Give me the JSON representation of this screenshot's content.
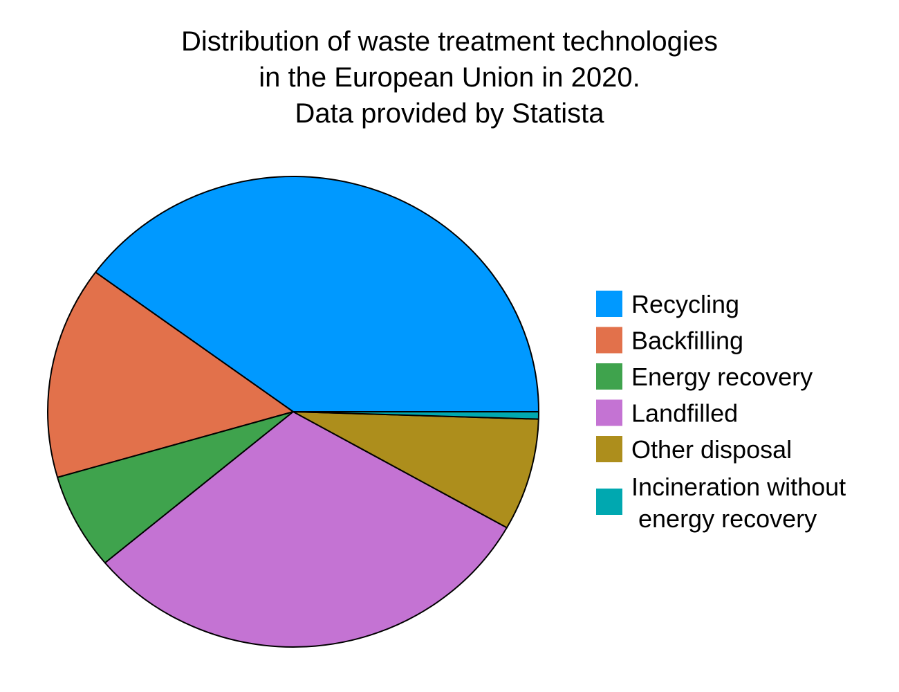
{
  "chart_data": {
    "type": "pie",
    "title_lines": [
      "Distribution of waste treatment technologies",
      "in the European Union in 2020.",
      "Data provided by Statista"
    ],
    "slices": [
      {
        "label_lines": [
          "Recycling"
        ],
        "value": 39.9,
        "color": "#0099ff"
      },
      {
        "label_lines": [
          "Backfilling"
        ],
        "value": 14.6,
        "color": "#e2714b"
      },
      {
        "label_lines": [
          "Energy recovery"
        ],
        "value": 6.6,
        "color": "#3fa34d"
      },
      {
        "label_lines": [
          "Landfilled"
        ],
        "value": 30.7,
        "color": "#c473d3"
      },
      {
        "label_lines": [
          "Other disposal"
        ],
        "value": 7.7,
        "color": "#ad8e1c"
      },
      {
        "label_lines": [
          "Incineration without",
          " energy recovery"
        ],
        "value": 0.5,
        "color": "#00a8b0"
      }
    ],
    "legend_position": "right",
    "start": "3 o'clock",
    "direction": "counterclockwise"
  }
}
